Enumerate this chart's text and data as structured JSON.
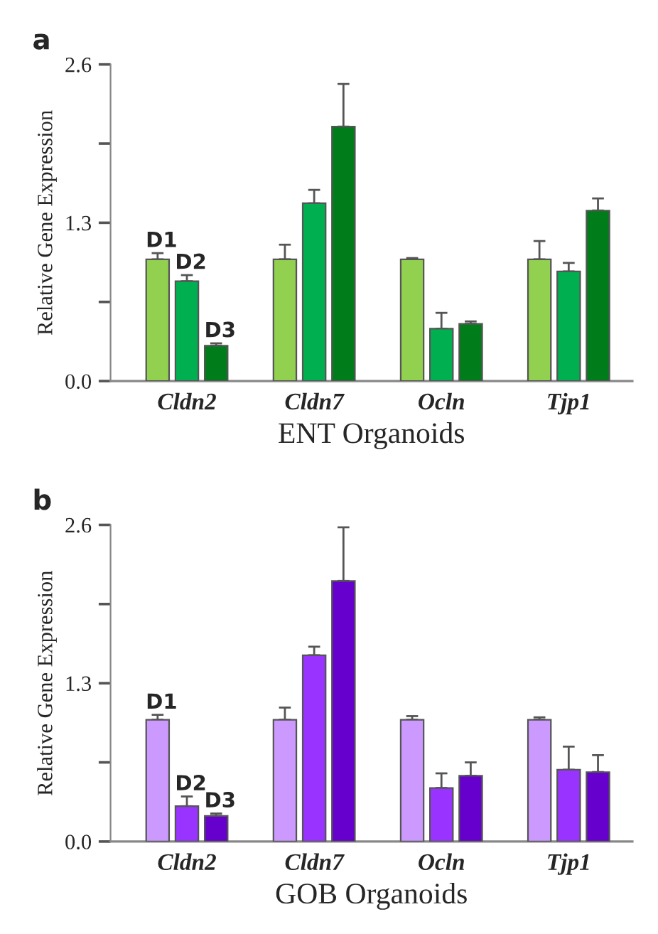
{
  "chart_data": [
    {
      "type": "bar",
      "categories": [
        "Cldn2",
        "Cldn7",
        "Ocln",
        "Tjp1"
      ],
      "xlabel": "ENT Organoids",
      "ylabel": "Relative Gene Expression",
      "annotations": [
        "a"
      ],
      "ylim": [
        0,
        2.6
      ],
      "yticks": [
        {
          "value": 0,
          "label": "0.0"
        },
        {
          "value": 0.65,
          "label": null
        },
        {
          "value": 1.3,
          "label": "1.3"
        },
        {
          "value": 1.95,
          "label": null
        },
        {
          "value": 2.6,
          "label": "2.6"
        }
      ],
      "legend": false,
      "grid": false,
      "series": [
        {
          "name": "D1",
          "color": "#92d050",
          "values": [
            1.0,
            1.0,
            1.0,
            1.0
          ],
          "errors": [
            [
              1.0,
              1.05
            ],
            [
              1.0,
              1.12
            ],
            [
              1.0,
              1.01
            ],
            [
              1.0,
              1.15
            ]
          ]
        },
        {
          "name": "D2",
          "color": "#00b050",
          "values": [
            0.82,
            1.46,
            0.43,
            0.9
          ],
          "errors": [
            [
              0.82,
              0.87
            ],
            [
              1.46,
              1.57
            ],
            [
              0.43,
              0.56
            ],
            [
              0.9,
              0.97
            ]
          ]
        },
        {
          "name": "D3",
          "color": "#007d1a",
          "values": [
            0.29,
            2.09,
            0.47,
            1.4
          ],
          "errors": [
            [
              0.29,
              0.31
            ],
            [
              2.09,
              2.44
            ],
            [
              0.47,
              0.49
            ],
            [
              1.4,
              1.5
            ]
          ]
        }
      ]
    },
    {
      "type": "bar",
      "categories": [
        "Cldn2",
        "Cldn7",
        "Ocln",
        "Tjp1"
      ],
      "xlabel": "GOB Organoids",
      "ylabel": "Relative Gene Expression",
      "annotations": [
        "b"
      ],
      "ylim": [
        0,
        2.6
      ],
      "yticks": [
        {
          "value": 0,
          "label": "0.0"
        },
        {
          "value": 0.65,
          "label": null
        },
        {
          "value": 1.3,
          "label": "1.3"
        },
        {
          "value": 1.95,
          "label": null
        },
        {
          "value": 2.6,
          "label": "2.6"
        }
      ],
      "legend": false,
      "grid": false,
      "series": [
        {
          "name": "D1",
          "color": "#cc99ff",
          "values": [
            1.0,
            1.0,
            1.0,
            1.0
          ],
          "errors": [
            [
              1.0,
              1.04
            ],
            [
              1.0,
              1.1
            ],
            [
              1.0,
              1.03
            ],
            [
              1.0,
              1.02
            ]
          ]
        },
        {
          "name": "D2",
          "color": "#9933ff",
          "values": [
            0.29,
            1.53,
            0.44,
            0.59
          ],
          "errors": [
            [
              0.29,
              0.37
            ],
            [
              1.53,
              1.6
            ],
            [
              0.44,
              0.56
            ],
            [
              0.59,
              0.78
            ]
          ]
        },
        {
          "name": "D3",
          "color": "#6600cc",
          "values": [
            0.21,
            2.14,
            0.54,
            0.57
          ],
          "errors": [
            [
              0.21,
              0.23
            ],
            [
              2.14,
              2.58
            ],
            [
              0.54,
              0.65
            ],
            [
              0.57,
              0.71
            ]
          ]
        }
      ]
    }
  ]
}
